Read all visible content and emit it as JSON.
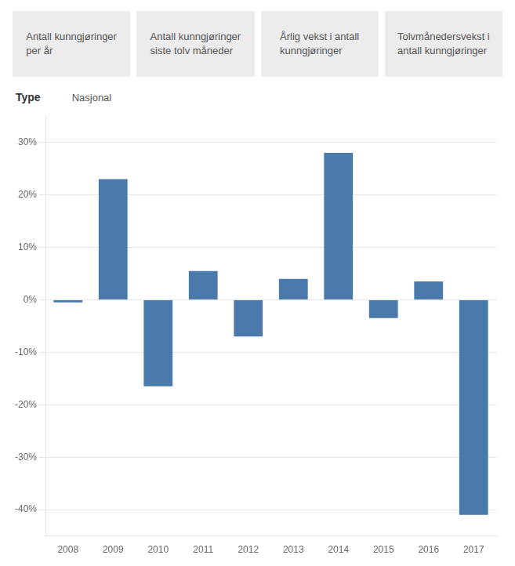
{
  "chart_data": {
    "type": "bar",
    "annotations": [
      "Antall kunngjøringer\nper år",
      "Antall kunngjøringer\nsiste tolv måneder",
      "Årlig vekst i antall\nkunngjøringer",
      "Tolvmånedersvekst i\nantall kunngjøringer"
    ],
    "ylabel": "Type",
    "subtitle": "Nasjonal",
    "categories": [
      2008,
      2009,
      2010,
      2011,
      2012,
      2013,
      2014,
      2015,
      2016,
      2017
    ],
    "values": [
      -0.5,
      23.0,
      -16.5,
      5.5,
      -7.0,
      4.0,
      28.0,
      -3.5,
      3.5,
      -41.0
    ],
    "color": "#4a7aab",
    "ylim": [
      -45,
      35
    ],
    "yticks": [
      {
        "value": -40,
        "label": "-40%"
      },
      {
        "value": -30,
        "label": "-30%"
      },
      {
        "value": -20,
        "label": "-20%"
      },
      {
        "value": -10,
        "label": "-10%"
      },
      {
        "value": 0,
        "label": "0%"
      },
      {
        "value": 10,
        "label": "10%"
      },
      {
        "value": 20,
        "label": "20%"
      },
      {
        "value": 30,
        "label": "30%"
      }
    ],
    "grid": true
  }
}
